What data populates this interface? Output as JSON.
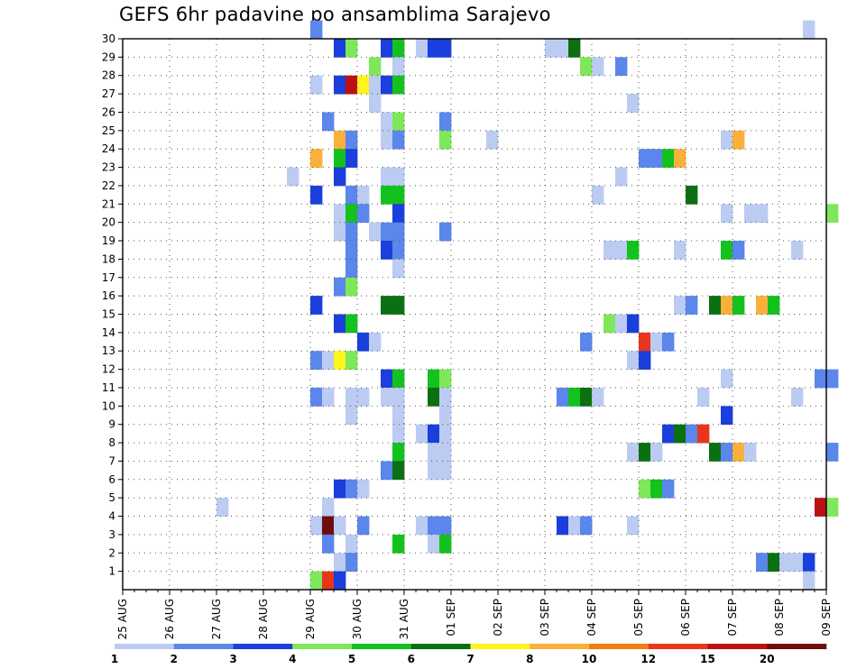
{
  "title": "GEFS 6hr padavine po ansamblima Sarajevo",
  "chart_data": {
    "type": "heatmap",
    "title": "GEFS 6hr padavine po ansamblima Sarajevo",
    "x_tick_labels": [
      "25 AUG",
      "26 AUG",
      "27 AUG",
      "28 AUG",
      "29 AUG",
      "30 AUG",
      "31 AUG",
      "01 SEP",
      "02 SEP",
      "03 SEP",
      "04 SEP",
      "05 SEP",
      "06 SEP",
      "07 SEP",
      "08 SEP",
      "09 SEP"
    ],
    "y_tick_labels": [
      "1",
      "2",
      "3",
      "4",
      "5",
      "6",
      "7",
      "8",
      "9",
      "10",
      "11",
      "12",
      "13",
      "14",
      "15",
      "16",
      "17",
      "18",
      "19",
      "20",
      "21",
      "22",
      "23",
      "24",
      "25",
      "26",
      "27",
      "28",
      "29",
      "30"
    ],
    "x_range": [
      "25 AUG",
      "09 SEP"
    ],
    "y_range": [
      0,
      30
    ],
    "x_step_hours": 6,
    "grid": true,
    "colorbar": {
      "position": "bottom",
      "colors": [
        "#bccbf2",
        "#5b86ec",
        "#1a3fdc",
        "#7ee85a",
        "#14c21f",
        "#0a7012",
        "#fff51c",
        "#fbb03b",
        "#f57e10",
        "#e8351b",
        "#bd1111",
        "#6f0d0d"
      ],
      "labels": [
        "1",
        "2",
        "3",
        "4",
        "5",
        "6",
        "7",
        "8",
        "10",
        "12",
        "15",
        "20"
      ]
    },
    "cells": [
      {
        "m": 30,
        "s": 16,
        "c": 1
      },
      {
        "m": 30,
        "s": 58,
        "c": 0
      },
      {
        "m": 29,
        "s": 18,
        "c": 2
      },
      {
        "m": 29,
        "s": 19,
        "c": 3
      },
      {
        "m": 29,
        "s": 22,
        "c": 2
      },
      {
        "m": 29,
        "s": 23,
        "c": 4
      },
      {
        "m": 29,
        "s": 25,
        "c": 0
      },
      {
        "m": 29,
        "s": 26,
        "c": 2
      },
      {
        "m": 29,
        "s": 27,
        "c": 2
      },
      {
        "m": 29,
        "s": 36,
        "c": 0
      },
      {
        "m": 29,
        "s": 37,
        "c": 0
      },
      {
        "m": 29,
        "s": 38,
        "c": 5
      },
      {
        "m": 28,
        "s": 21,
        "c": 3
      },
      {
        "m": 28,
        "s": 23,
        "c": 0
      },
      {
        "m": 28,
        "s": 39,
        "c": 3
      },
      {
        "m": 28,
        "s": 40,
        "c": 0
      },
      {
        "m": 28,
        "s": 42,
        "c": 1
      },
      {
        "m": 27,
        "s": 16,
        "c": 0
      },
      {
        "m": 27,
        "s": 18,
        "c": 2
      },
      {
        "m": 27,
        "s": 19,
        "c": 10
      },
      {
        "m": 27,
        "s": 20,
        "c": 6
      },
      {
        "m": 27,
        "s": 21,
        "c": 0
      },
      {
        "m": 27,
        "s": 22,
        "c": 2
      },
      {
        "m": 27,
        "s": 23,
        "c": 4
      },
      {
        "m": 26,
        "s": 21,
        "c": 0
      },
      {
        "m": 26,
        "s": 43,
        "c": 0
      },
      {
        "m": 25,
        "s": 17,
        "c": 1
      },
      {
        "m": 25,
        "s": 22,
        "c": 0
      },
      {
        "m": 25,
        "s": 23,
        "c": 3
      },
      {
        "m": 25,
        "s": 27,
        "c": 1
      },
      {
        "m": 24,
        "s": 18,
        "c": 7
      },
      {
        "m": 24,
        "s": 19,
        "c": 1
      },
      {
        "m": 24,
        "s": 22,
        "c": 0
      },
      {
        "m": 24,
        "s": 23,
        "c": 1
      },
      {
        "m": 24,
        "s": 27,
        "c": 3
      },
      {
        "m": 24,
        "s": 31,
        "c": 0
      },
      {
        "m": 24,
        "s": 51,
        "c": 0
      },
      {
        "m": 24,
        "s": 52,
        "c": 7
      },
      {
        "m": 23,
        "s": 16,
        "c": 7
      },
      {
        "m": 23,
        "s": 18,
        "c": 4
      },
      {
        "m": 23,
        "s": 19,
        "c": 2
      },
      {
        "m": 23,
        "s": 44,
        "c": 1
      },
      {
        "m": 23,
        "s": 45,
        "c": 1
      },
      {
        "m": 23,
        "s": 46,
        "c": 4
      },
      {
        "m": 23,
        "s": 47,
        "c": 7
      },
      {
        "m": 22,
        "s": 14,
        "c": 0
      },
      {
        "m": 22,
        "s": 18,
        "c": 2
      },
      {
        "m": 22,
        "s": 22,
        "c": 0
      },
      {
        "m": 22,
        "s": 23,
        "c": 0
      },
      {
        "m": 22,
        "s": 42,
        "c": 0
      },
      {
        "m": 21,
        "s": 16,
        "c": 2
      },
      {
        "m": 21,
        "s": 19,
        "c": 1
      },
      {
        "m": 21,
        "s": 20,
        "c": 0
      },
      {
        "m": 21,
        "s": 22,
        "c": 4
      },
      {
        "m": 21,
        "s": 23,
        "c": 4
      },
      {
        "m": 21,
        "s": 40,
        "c": 0
      },
      {
        "m": 21,
        "s": 48,
        "c": 5
      },
      {
        "m": 20,
        "s": 18,
        "c": 0
      },
      {
        "m": 20,
        "s": 19,
        "c": 4
      },
      {
        "m": 20,
        "s": 20,
        "c": 1
      },
      {
        "m": 20,
        "s": 23,
        "c": 2
      },
      {
        "m": 20,
        "s": 51,
        "c": 0
      },
      {
        "m": 20,
        "s": 53,
        "c": 0
      },
      {
        "m": 20,
        "s": 54,
        "c": 0
      },
      {
        "m": 20,
        "s": 60,
        "c": 3
      },
      {
        "m": 19,
        "s": 18,
        "c": 0
      },
      {
        "m": 19,
        "s": 19,
        "c": 1
      },
      {
        "m": 19,
        "s": 21,
        "c": 0
      },
      {
        "m": 19,
        "s": 22,
        "c": 1
      },
      {
        "m": 19,
        "s": 23,
        "c": 1
      },
      {
        "m": 19,
        "s": 27,
        "c": 1
      },
      {
        "m": 18,
        "s": 19,
        "c": 1
      },
      {
        "m": 18,
        "s": 22,
        "c": 2
      },
      {
        "m": 18,
        "s": 23,
        "c": 1
      },
      {
        "m": 18,
        "s": 41,
        "c": 0
      },
      {
        "m": 18,
        "s": 42,
        "c": 0
      },
      {
        "m": 18,
        "s": 43,
        "c": 4
      },
      {
        "m": 18,
        "s": 47,
        "c": 0
      },
      {
        "m": 18,
        "s": 51,
        "c": 4
      },
      {
        "m": 18,
        "s": 52,
        "c": 1
      },
      {
        "m": 18,
        "s": 57,
        "c": 0
      },
      {
        "m": 17,
        "s": 19,
        "c": 1
      },
      {
        "m": 17,
        "s": 23,
        "c": 0
      },
      {
        "m": 16,
        "s": 18,
        "c": 1
      },
      {
        "m": 16,
        "s": 19,
        "c": 3
      },
      {
        "m": 15,
        "s": 16,
        "c": 2
      },
      {
        "m": 15,
        "s": 22,
        "c": 5
      },
      {
        "m": 15,
        "s": 23,
        "c": 5
      },
      {
        "m": 15,
        "s": 47,
        "c": 0
      },
      {
        "m": 15,
        "s": 48,
        "c": 1
      },
      {
        "m": 15,
        "s": 50,
        "c": 5
      },
      {
        "m": 15,
        "s": 51,
        "c": 7
      },
      {
        "m": 15,
        "s": 52,
        "c": 4
      },
      {
        "m": 15,
        "s": 54,
        "c": 7
      },
      {
        "m": 15,
        "s": 55,
        "c": 4
      },
      {
        "m": 14,
        "s": 18,
        "c": 2
      },
      {
        "m": 14,
        "s": 19,
        "c": 4
      },
      {
        "m": 14,
        "s": 41,
        "c": 3
      },
      {
        "m": 14,
        "s": 42,
        "c": 0
      },
      {
        "m": 14,
        "s": 43,
        "c": 2
      },
      {
        "m": 13,
        "s": 20,
        "c": 2
      },
      {
        "m": 13,
        "s": 21,
        "c": 0
      },
      {
        "m": 13,
        "s": 39,
        "c": 1
      },
      {
        "m": 13,
        "s": 44,
        "c": 9
      },
      {
        "m": 13,
        "s": 45,
        "c": 0
      },
      {
        "m": 13,
        "s": 46,
        "c": 1
      },
      {
        "m": 12,
        "s": 16,
        "c": 1
      },
      {
        "m": 12,
        "s": 17,
        "c": 0
      },
      {
        "m": 12,
        "s": 18,
        "c": 6
      },
      {
        "m": 12,
        "s": 19,
        "c": 3
      },
      {
        "m": 12,
        "s": 43,
        "c": 0
      },
      {
        "m": 12,
        "s": 44,
        "c": 2
      },
      {
        "m": 11,
        "s": 22,
        "c": 2
      },
      {
        "m": 11,
        "s": 23,
        "c": 4
      },
      {
        "m": 11,
        "s": 26,
        "c": 4
      },
      {
        "m": 11,
        "s": 27,
        "c": 3
      },
      {
        "m": 11,
        "s": 51,
        "c": 0
      },
      {
        "m": 11,
        "s": 59,
        "c": 1
      },
      {
        "m": 11,
        "s": 60,
        "c": 1
      },
      {
        "m": 10,
        "s": 16,
        "c": 1
      },
      {
        "m": 10,
        "s": 17,
        "c": 0
      },
      {
        "m": 10,
        "s": 19,
        "c": 0
      },
      {
        "m": 10,
        "s": 20,
        "c": 0
      },
      {
        "m": 10,
        "s": 22,
        "c": 0
      },
      {
        "m": 10,
        "s": 23,
        "c": 0
      },
      {
        "m": 10,
        "s": 26,
        "c": 5
      },
      {
        "m": 10,
        "s": 27,
        "c": 0
      },
      {
        "m": 10,
        "s": 37,
        "c": 1
      },
      {
        "m": 10,
        "s": 38,
        "c": 4
      },
      {
        "m": 10,
        "s": 39,
        "c": 5
      },
      {
        "m": 10,
        "s": 40,
        "c": 0
      },
      {
        "m": 10,
        "s": 49,
        "c": 0
      },
      {
        "m": 10,
        "s": 57,
        "c": 0
      },
      {
        "m": 9,
        "s": 19,
        "c": 0
      },
      {
        "m": 9,
        "s": 23,
        "c": 0
      },
      {
        "m": 9,
        "s": 27,
        "c": 0
      },
      {
        "m": 9,
        "s": 51,
        "c": 2
      },
      {
        "m": 8,
        "s": 23,
        "c": 0
      },
      {
        "m": 8,
        "s": 25,
        "c": 0
      },
      {
        "m": 8,
        "s": 26,
        "c": 2
      },
      {
        "m": 8,
        "s": 27,
        "c": 0
      },
      {
        "m": 8,
        "s": 46,
        "c": 2
      },
      {
        "m": 8,
        "s": 47,
        "c": 5
      },
      {
        "m": 8,
        "s": 48,
        "c": 1
      },
      {
        "m": 8,
        "s": 49,
        "c": 9
      },
      {
        "m": 7,
        "s": 23,
        "c": 4
      },
      {
        "m": 7,
        "s": 26,
        "c": 0
      },
      {
        "m": 7,
        "s": 27,
        "c": 0
      },
      {
        "m": 7,
        "s": 43,
        "c": 0
      },
      {
        "m": 7,
        "s": 44,
        "c": 5
      },
      {
        "m": 7,
        "s": 45,
        "c": 0
      },
      {
        "m": 7,
        "s": 50,
        "c": 5
      },
      {
        "m": 7,
        "s": 51,
        "c": 1
      },
      {
        "m": 7,
        "s": 52,
        "c": 7
      },
      {
        "m": 7,
        "s": 53,
        "c": 0
      },
      {
        "m": 7,
        "s": 60,
        "c": 1
      },
      {
        "m": 6,
        "s": 22,
        "c": 1
      },
      {
        "m": 6,
        "s": 23,
        "c": 5
      },
      {
        "m": 6,
        "s": 26,
        "c": 0
      },
      {
        "m": 6,
        "s": 27,
        "c": 0
      },
      {
        "m": 5,
        "s": 18,
        "c": 2
      },
      {
        "m": 5,
        "s": 19,
        "c": 1
      },
      {
        "m": 5,
        "s": 20,
        "c": 0
      },
      {
        "m": 5,
        "s": 44,
        "c": 3
      },
      {
        "m": 5,
        "s": 45,
        "c": 4
      },
      {
        "m": 5,
        "s": 46,
        "c": 1
      },
      {
        "m": 4,
        "s": 8,
        "c": 0
      },
      {
        "m": 4,
        "s": 17,
        "c": 0
      },
      {
        "m": 4,
        "s": 59,
        "c": 10
      },
      {
        "m": 4,
        "s": 60,
        "c": 3
      },
      {
        "m": 3,
        "s": 16,
        "c": 0
      },
      {
        "m": 3,
        "s": 17,
        "c": 11
      },
      {
        "m": 3,
        "s": 18,
        "c": 0
      },
      {
        "m": 3,
        "s": 20,
        "c": 1
      },
      {
        "m": 3,
        "s": 25,
        "c": 0
      },
      {
        "m": 3,
        "s": 26,
        "c": 1
      },
      {
        "m": 3,
        "s": 27,
        "c": 1
      },
      {
        "m": 3,
        "s": 37,
        "c": 2
      },
      {
        "m": 3,
        "s": 38,
        "c": 0
      },
      {
        "m": 3,
        "s": 39,
        "c": 1
      },
      {
        "m": 3,
        "s": 43,
        "c": 0
      },
      {
        "m": 2,
        "s": 17,
        "c": 1
      },
      {
        "m": 2,
        "s": 19,
        "c": 0
      },
      {
        "m": 2,
        "s": 23,
        "c": 4
      },
      {
        "m": 2,
        "s": 26,
        "c": 0
      },
      {
        "m": 2,
        "s": 27,
        "c": 4
      },
      {
        "m": 1,
        "s": 18,
        "c": 0
      },
      {
        "m": 1,
        "s": 19,
        "c": 1
      },
      {
        "m": 1,
        "s": 54,
        "c": 1
      },
      {
        "m": 1,
        "s": 55,
        "c": 5
      },
      {
        "m": 1,
        "s": 56,
        "c": 0
      },
      {
        "m": 1,
        "s": 57,
        "c": 0
      },
      {
        "m": 1,
        "s": 58,
        "c": 2
      },
      {
        "m": 0,
        "s": 16,
        "c": 3
      },
      {
        "m": 0,
        "s": 17,
        "c": 9
      },
      {
        "m": 0,
        "s": 18,
        "c": 2
      },
      {
        "m": 0,
        "s": 58,
        "c": 0
      }
    ]
  }
}
